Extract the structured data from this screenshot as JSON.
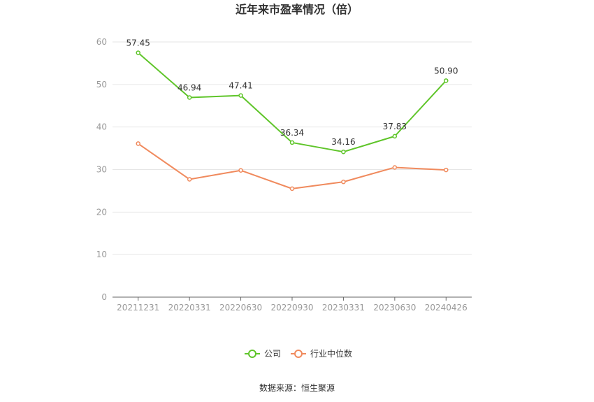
{
  "chart_data": {
    "type": "line",
    "title": "近年来市盈率情况（倍）",
    "categories": [
      "20211231",
      "20220331",
      "20220630",
      "20220930",
      "20230331",
      "20230630",
      "20240426"
    ],
    "ylim": [
      0,
      60
    ],
    "yticks": [
      "0",
      "10",
      "20",
      "30",
      "40",
      "50",
      "60"
    ],
    "grid": true,
    "legend_position": "bottom-center",
    "series": [
      {
        "name": "公司",
        "color": "#5fc52a",
        "values": [
          57.45,
          46.94,
          47.41,
          36.34,
          34.16,
          37.83,
          50.9
        ],
        "labels": [
          "57.45",
          "46.94",
          "47.41",
          "36.34",
          "34.16",
          "37.83",
          "50.90"
        ]
      },
      {
        "name": "行业中位数",
        "color": "#f08a5d",
        "values": [
          36.1,
          27.7,
          29.8,
          25.5,
          27.1,
          30.5,
          29.9
        ]
      }
    ]
  },
  "source": "数据来源：恒生聚源"
}
